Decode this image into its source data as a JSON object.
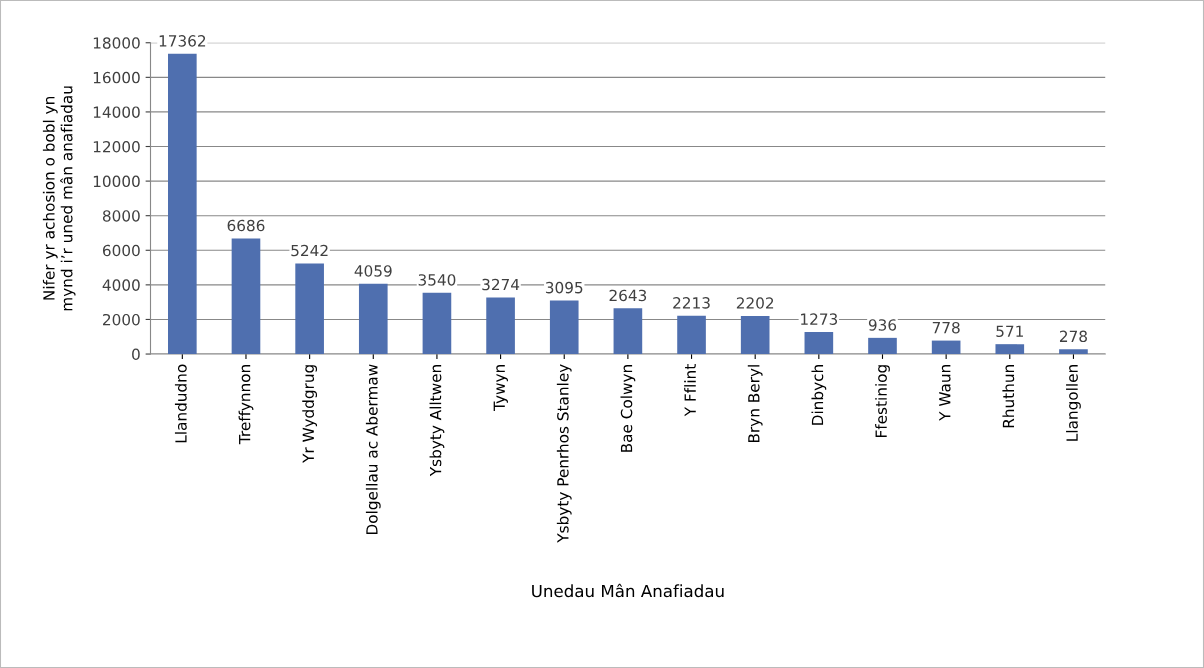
{
  "chart_data": {
    "type": "bar",
    "xlabel": "Unedau Mân Anafiadau",
    "ylabel": "Nifer yr achosion o bobl yn\nmynd i’r uned mân anafiadau",
    "categories": [
      "Llandudno",
      "Treffynnon",
      "Yr Wyddgrug",
      "Dolgellau ac Abermaw",
      "Ysbyty Alltwen",
      "Tywyn",
      "Ysbyty Penrhos Stanley",
      "Bae Colwyn",
      "Y Fflint",
      "Bryn Beryl",
      "Dinbych",
      "Ffestiniog",
      "Y Waun",
      "Rhuthun",
      "Llangollen"
    ],
    "values": [
      17362,
      6686,
      5242,
      4059,
      3540,
      3274,
      3095,
      2643,
      2213,
      2202,
      1273,
      936,
      778,
      571,
      278
    ],
    "color": "#4f6faf",
    "data_labels": true,
    "grid": "y",
    "legend": false,
    "ylim": [
      0,
      18000
    ],
    "yticks": [
      0,
      2000,
      4000,
      6000,
      8000,
      10000,
      12000,
      14000,
      16000,
      18000
    ]
  }
}
